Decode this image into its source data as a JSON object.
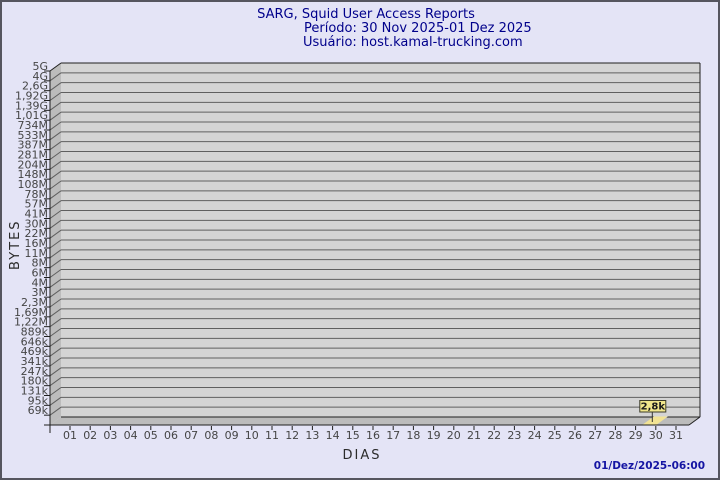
{
  "title": {
    "app": "SARG, Squid User Access Reports",
    "period": "Período: 30 Nov 2025-01 Dez 2025",
    "user": "Usuário: host.kamal-trucking.com"
  },
  "chart_data": {
    "type": "bar",
    "title": "SARG, Squid User Access Reports",
    "subtitle_period": "Período: 30 Nov 2025-01 Dez 2025",
    "subtitle_user": "Usuário: host.kamal-trucking.com",
    "xlabel": "DIAS",
    "ylabel": "BYTES",
    "x_tick_labels": [
      "01",
      "02",
      "03",
      "04",
      "05",
      "06",
      "07",
      "08",
      "09",
      "10",
      "11",
      "12",
      "13",
      "14",
      "15",
      "16",
      "17",
      "18",
      "19",
      "20",
      "21",
      "22",
      "23",
      "24",
      "25",
      "26",
      "27",
      "28",
      "29",
      "30",
      "31"
    ],
    "y_tick_labels": [
      "5G",
      "4G",
      "2,6G",
      "1,92G",
      "1,39G",
      "1,01G",
      "734M",
      "533M",
      "387M",
      "281M",
      "204M",
      "148M",
      "108M",
      "78M",
      "57M",
      "41M",
      "30M",
      "22M",
      "16M",
      "11M",
      "8M",
      "6M",
      "4M",
      "3M",
      "2,3M",
      "1,69M",
      "1,22M",
      "889k",
      "646k",
      "469k",
      "341k",
      "247k",
      "180k",
      "131k",
      "95k",
      "69k"
    ],
    "grid": true,
    "legend_position": "none",
    "series": [
      {
        "name": "bytes-per-day",
        "color": "#f2e394",
        "data": [
          {
            "x": "30",
            "label": "2,8k",
            "value_bytes": 2800
          }
        ]
      }
    ]
  },
  "footer": {
    "generated": "01/Dez/2025-06:00"
  },
  "colors": {
    "background": "#e4e4f6",
    "frame_border": "#55555f",
    "panel": "#d4d4d4",
    "panel_side": "#bcbcbc",
    "gridline": "#5f5f5f",
    "edge": "#1f1f1f",
    "tick_text": "#454545",
    "title_text": "#00008b",
    "timestamp_text": "#1515a3",
    "axis_title_text": "#2b2b2b",
    "bar_fill": "#f2e394",
    "bar_label_bg": "#f0e68c",
    "bar_label_border": "#3a3a28",
    "bar_label_text": "#1a1a1a"
  }
}
